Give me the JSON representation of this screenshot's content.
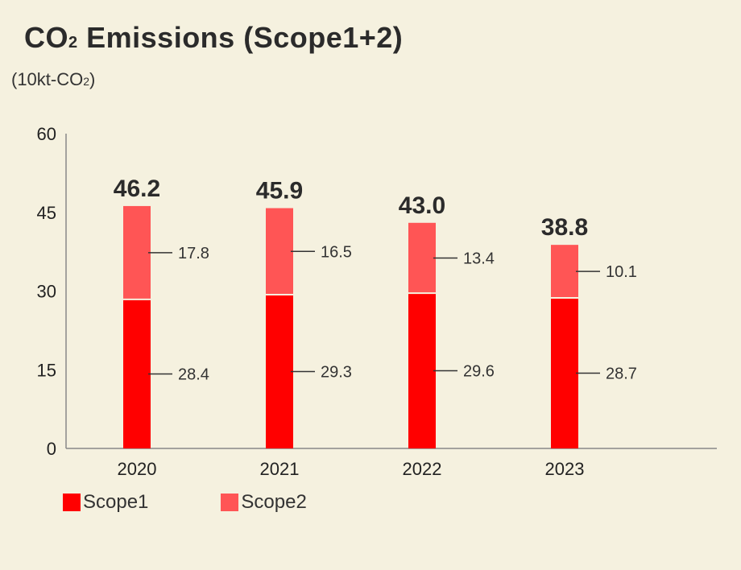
{
  "title": {
    "main": "CO",
    "subscript": "2",
    "rest": " Emissions (Scope1+2)"
  },
  "unit": {
    "main": "(10kt-CO",
    "subscript": "2",
    "rest": ")"
  },
  "colors": {
    "scope1": "#ff0000",
    "scope2": "#ff5555",
    "axis": "#888888",
    "background": "#f5f1df"
  },
  "chart_data": {
    "type": "bar",
    "stacked": true,
    "categories": [
      "2020",
      "2021",
      "2022",
      "2023"
    ],
    "series": [
      {
        "name": "Scope1",
        "values": [
          28.4,
          29.3,
          29.6,
          28.7
        ]
      },
      {
        "name": "Scope2",
        "values": [
          17.8,
          16.5,
          13.4,
          10.1
        ]
      }
    ],
    "totals": [
      "46.2",
      "45.9",
      "43.0",
      "38.8"
    ],
    "ylim": [
      0,
      60
    ],
    "yticks": [
      0,
      15,
      30,
      45,
      60
    ],
    "legend_position": "bottom-left",
    "grid": false
  }
}
